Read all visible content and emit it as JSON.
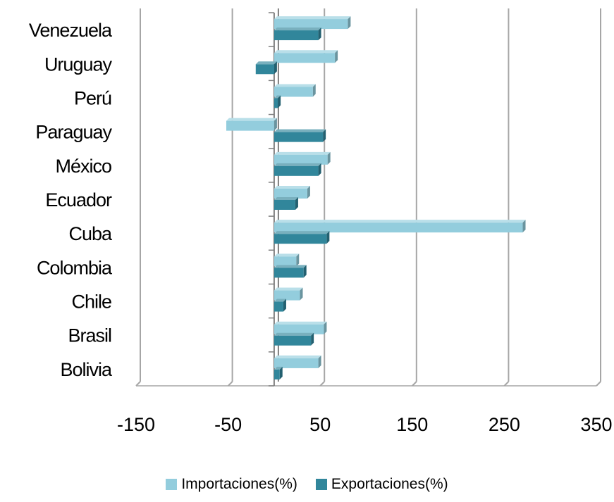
{
  "chart_data": {
    "type": "bar",
    "orientation": "horizontal",
    "categories": [
      "Venezuela",
      "Uruguay",
      "Perú",
      "Paraguay",
      "México",
      "Ecuador",
      "Cuba",
      "Colombia",
      "Chile",
      "Brasil",
      "Bolivia"
    ],
    "series": [
      {
        "name": "Importaciones(%)",
        "color": "#93cddd",
        "values": [
          80,
          66,
          42,
          -52,
          58,
          36,
          270,
          24,
          28,
          54,
          48
        ]
      },
      {
        "name": "Exportaciones(%)",
        "color": "#31869b",
        "values": [
          48,
          -20,
          4,
          53,
          48,
          23,
          57,
          32,
          10,
          40,
          6
        ]
      }
    ],
    "xlim": [
      -150,
      350
    ],
    "xticks": [
      "-150",
      "-50",
      "50",
      "150",
      "250",
      "350"
    ],
    "grid": true,
    "legend_position": "bottom",
    "title": "",
    "xlabel": "",
    "ylabel": ""
  }
}
